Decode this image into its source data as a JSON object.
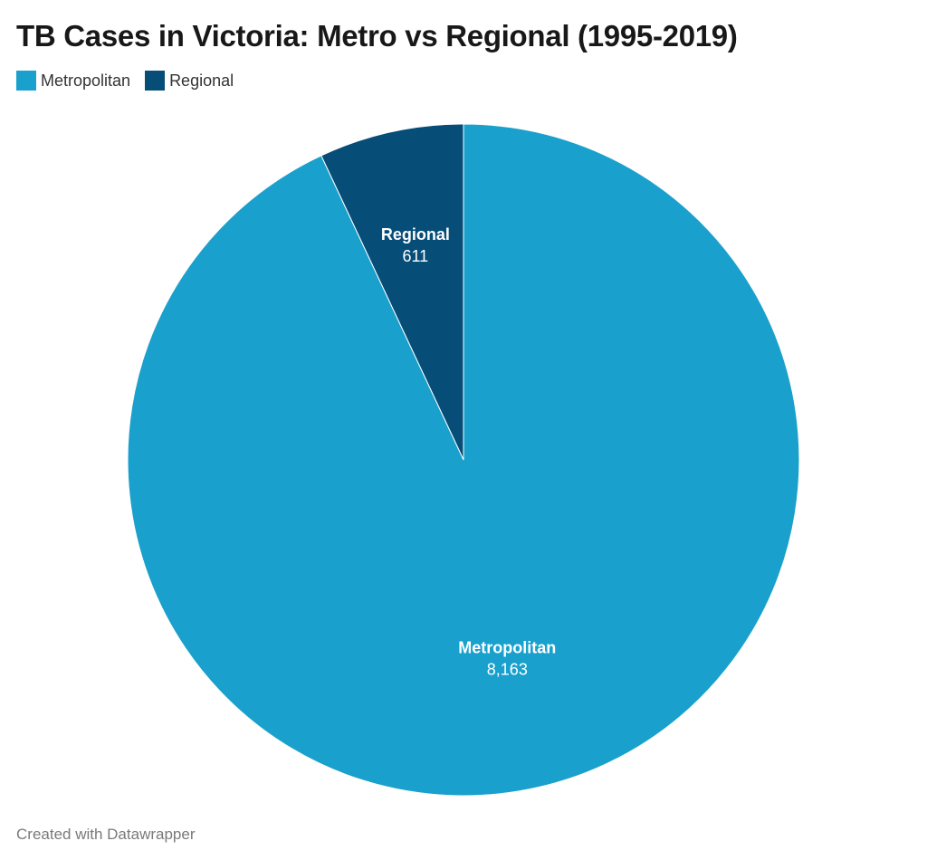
{
  "chart_data": {
    "type": "pie",
    "title": "TB Cases in Victoria: Metro vs Regional (1995-2019)",
    "slices": [
      {
        "label": "Regional",
        "value": 611,
        "value_label": "611",
        "color": "#064d77"
      },
      {
        "label": "Metropolitan",
        "value": 8163,
        "value_label": "8,163",
        "color": "#1aa0cc"
      }
    ],
    "legend": {
      "placement": "top-left",
      "entries": [
        {
          "label": "Metropolitan",
          "color": "#1aa0cc"
        },
        {
          "label": "Regional",
          "color": "#064d77"
        }
      ]
    },
    "start_angle": "12 o'clock",
    "direction": "counterclockwise for first slice"
  },
  "footer": {
    "credit": "Created with Datawrapper"
  }
}
